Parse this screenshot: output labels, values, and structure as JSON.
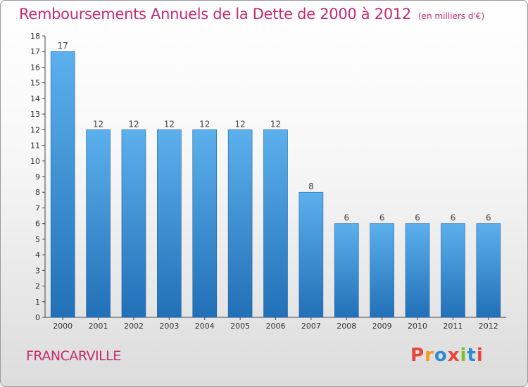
{
  "title": "Remboursements Annuels de la Dette de 2000 à 2012",
  "unit_note": "(en milliers d'€)",
  "commune": "FRANCARVILLE",
  "logo": {
    "text": "Proxiti",
    "colors": [
      "#e8453c",
      "#f39a1f",
      "#2d8bd6",
      "#e8453c",
      "#7bbf2e",
      "#2d8bd6",
      "#e8453c"
    ]
  },
  "colors": {
    "title": "#c62a70",
    "bar": "#4e9fe0",
    "bar_dark": "#2270b8",
    "axis": "#444444"
  },
  "chart_data": {
    "type": "bar",
    "title": "Remboursements Annuels de la Dette de 2000 à 2012",
    "xlabel": "",
    "ylabel": "",
    "categories": [
      "2000",
      "2001",
      "2002",
      "2003",
      "2004",
      "2005",
      "2006",
      "2007",
      "2008",
      "2009",
      "2010",
      "2011",
      "2012"
    ],
    "values": [
      17,
      12,
      12,
      12,
      12,
      12,
      12,
      8,
      6,
      6,
      6,
      6,
      6
    ],
    "ylim": [
      0,
      18
    ],
    "yticks": [
      0,
      1,
      2,
      3,
      4,
      5,
      6,
      7,
      8,
      9,
      10,
      11,
      12,
      13,
      14,
      15,
      16,
      17,
      18
    ],
    "grid": false,
    "legend": "none"
  }
}
